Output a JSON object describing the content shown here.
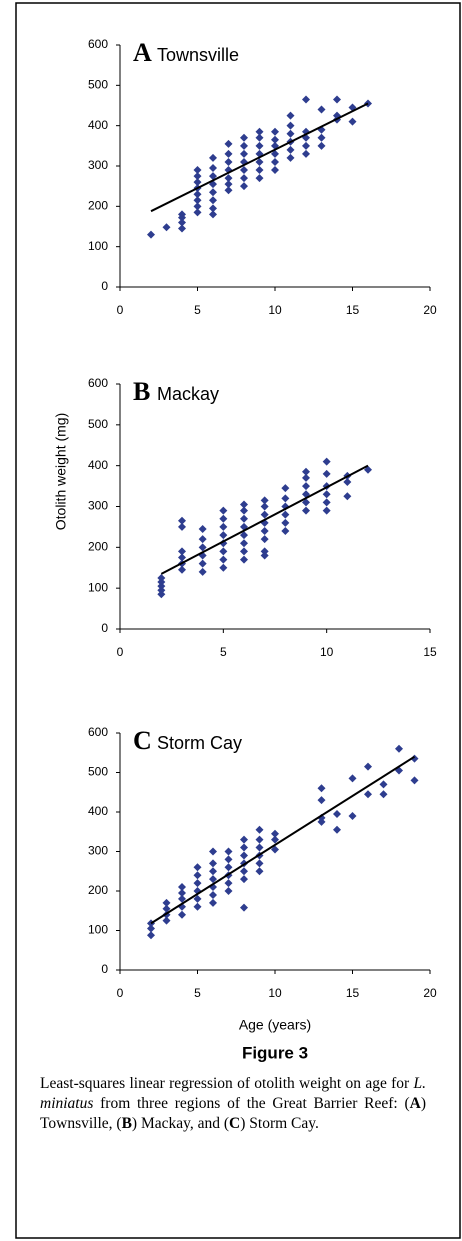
{
  "chart_data": [
    {
      "type": "scatter",
      "panel_label": "A",
      "title": "Townsville",
      "xlim": [
        0,
        20
      ],
      "xticks": [
        0,
        5,
        10,
        15,
        20
      ],
      "ylim": [
        0,
        600
      ],
      "yticks": [
        0,
        100,
        200,
        300,
        400,
        500,
        600
      ],
      "series": [
        {
          "mode": "markers",
          "color": "#2e3d8f",
          "x": [
            2,
            3,
            4,
            4,
            4,
            4,
            5,
            5,
            5,
            5,
            5,
            5,
            5,
            5,
            6,
            6,
            6,
            6,
            6,
            6,
            6,
            6,
            7,
            7,
            7,
            7,
            7,
            7,
            7,
            8,
            8,
            8,
            8,
            8,
            8,
            8,
            9,
            9,
            9,
            9,
            9,
            9,
            9,
            10,
            10,
            10,
            10,
            10,
            10,
            11,
            11,
            11,
            11,
            11,
            11,
            12,
            12,
            12,
            12,
            12,
            13,
            13,
            13,
            13,
            14,
            14,
            14,
            15,
            15,
            16
          ],
          "values": [
            130,
            148,
            145,
            160,
            172,
            180,
            185,
            200,
            215,
            230,
            245,
            260,
            275,
            290,
            180,
            195,
            215,
            235,
            255,
            275,
            295,
            320,
            240,
            255,
            270,
            290,
            310,
            330,
            355,
            250,
            270,
            290,
            310,
            330,
            350,
            370,
            270,
            290,
            310,
            330,
            350,
            370,
            385,
            290,
            310,
            330,
            350,
            365,
            385,
            320,
            340,
            360,
            380,
            400,
            425,
            330,
            350,
            370,
            385,
            465,
            350,
            370,
            390,
            440,
            415,
            425,
            465,
            410,
            445,
            455
          ]
        },
        {
          "mode": "line",
          "color": "#000000",
          "x": [
            2,
            16
          ],
          "values": [
            188,
            455
          ]
        }
      ]
    },
    {
      "type": "scatter",
      "panel_label": "B",
      "title": "Mackay",
      "y_label": "Otolith weight (mg)",
      "xlim": [
        0,
        15
      ],
      "xticks": [
        0,
        5,
        10,
        15
      ],
      "ylim": [
        0,
        600
      ],
      "yticks": [
        0,
        100,
        200,
        300,
        400,
        500,
        600
      ],
      "series": [
        {
          "mode": "markers",
          "color": "#2e3d8f",
          "x": [
            2,
            2,
            2,
            2,
            2,
            3,
            3,
            3,
            3,
            3,
            3,
            4,
            4,
            4,
            4,
            4,
            4,
            5,
            5,
            5,
            5,
            5,
            5,
            5,
            5,
            6,
            6,
            6,
            6,
            6,
            6,
            6,
            6,
            7,
            7,
            7,
            7,
            7,
            7,
            7,
            7,
            8,
            8,
            8,
            8,
            8,
            8,
            9,
            9,
            9,
            9,
            9,
            9,
            10,
            10,
            10,
            10,
            10,
            10,
            11,
            11,
            11,
            12
          ],
          "values": [
            85,
            95,
            105,
            115,
            125,
            145,
            160,
            175,
            190,
            250,
            265,
            140,
            160,
            180,
            200,
            220,
            245,
            150,
            170,
            190,
            210,
            230,
            250,
            270,
            290,
            170,
            190,
            210,
            230,
            250,
            270,
            290,
            305,
            180,
            190,
            220,
            240,
            260,
            280,
            300,
            315,
            240,
            260,
            280,
            300,
            320,
            345,
            290,
            310,
            330,
            350,
            370,
            385,
            290,
            310,
            330,
            350,
            380,
            410,
            325,
            360,
            375,
            390
          ]
        },
        {
          "mode": "line",
          "color": "#000000",
          "x": [
            2,
            12
          ],
          "values": [
            135,
            400
          ]
        }
      ]
    },
    {
      "type": "scatter",
      "panel_label": "C",
      "title": "Storm Cay",
      "x_label": "Age (years)",
      "xlim": [
        0,
        20
      ],
      "xticks": [
        0,
        5,
        10,
        15,
        20
      ],
      "ylim": [
        0,
        600
      ],
      "yticks": [
        0,
        100,
        200,
        300,
        400,
        500,
        600
      ],
      "series": [
        {
          "mode": "markers",
          "color": "#2e3d8f",
          "x": [
            2,
            2,
            2,
            3,
            3,
            3,
            3,
            4,
            4,
            4,
            4,
            4,
            5,
            5,
            5,
            5,
            5,
            5,
            6,
            6,
            6,
            6,
            6,
            6,
            6,
            7,
            7,
            7,
            7,
            7,
            7,
            8,
            8,
            8,
            8,
            8,
            8,
            8,
            9,
            9,
            9,
            9,
            9,
            9,
            10,
            10,
            10,
            13,
            13,
            13,
            13,
            14,
            14,
            15,
            15,
            16,
            16,
            17,
            17,
            18,
            18,
            19,
            19
          ],
          "values": [
            88,
            105,
            118,
            125,
            140,
            155,
            170,
            140,
            160,
            180,
            195,
            210,
            160,
            180,
            200,
            220,
            240,
            260,
            170,
            190,
            210,
            230,
            250,
            270,
            300,
            200,
            220,
            240,
            260,
            280,
            300,
            158,
            230,
            250,
            270,
            290,
            310,
            330,
            250,
            270,
            290,
            310,
            330,
            355,
            305,
            330,
            345,
            375,
            385,
            430,
            460,
            355,
            395,
            390,
            485,
            445,
            515,
            445,
            470,
            505,
            560,
            480,
            535
          ]
        },
        {
          "mode": "line",
          "color": "#000000",
          "x": [
            2,
            19
          ],
          "values": [
            118,
            540
          ]
        }
      ]
    }
  ],
  "figure": {
    "label": "Figure 3",
    "caption": [
      {
        "text": "Least-squares linear regression of otolith weight on age for "
      },
      {
        "text": "L. miniatus",
        "style": "italic"
      },
      {
        "text": " from three regions of the Great Barrier Reef: ("
      },
      {
        "text": "A",
        "style": "bold"
      },
      {
        "text": ") Townsville, ("
      },
      {
        "text": "B",
        "style": "bold"
      },
      {
        "text": ") Mackay, and ("
      },
      {
        "text": "C",
        "style": "bold"
      },
      {
        "text": ") Storm Cay."
      }
    ]
  }
}
